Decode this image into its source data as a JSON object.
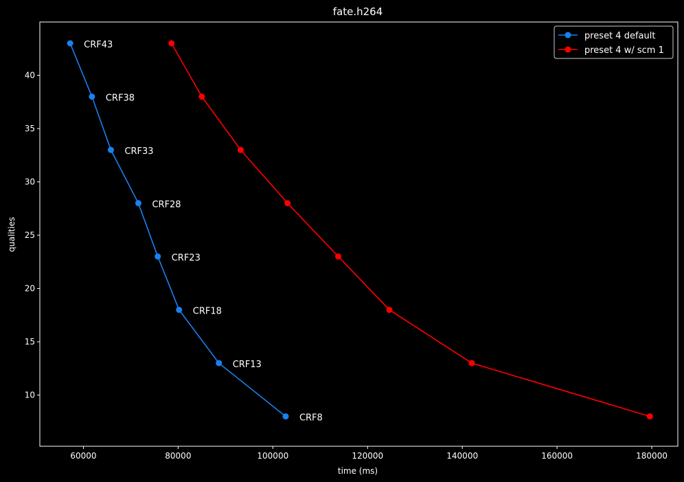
{
  "chart_data": {
    "type": "line",
    "title": "fate.h264",
    "xlabel": "time (ms)",
    "ylabel": "qualities",
    "xlim": [
      50800,
      185500
    ],
    "ylim": [
      5.2,
      45.0
    ],
    "xticks": [
      60000,
      80000,
      100000,
      120000,
      140000,
      160000,
      180000
    ],
    "xtick_labels": [
      "60000",
      "80000",
      "100000",
      "120000",
      "140000",
      "160000",
      "180000"
    ],
    "yticks": [
      10,
      15,
      20,
      25,
      30,
      35,
      40
    ],
    "ytick_labels": [
      "10",
      "15",
      "20",
      "25",
      "30",
      "35",
      "40"
    ],
    "grid": false,
    "legend_position": "top-right",
    "series": [
      {
        "name": "preset 4 default",
        "color": "#1a80f0",
        "x": [
          57200,
          61800,
          65800,
          71600,
          75700,
          80200,
          88600,
          102700
        ],
        "y": [
          43,
          38,
          33,
          28,
          23,
          18,
          13,
          8
        ]
      },
      {
        "name": "preset 4 w/ scm 1",
        "color": "#ff0000",
        "x": [
          78600,
          85000,
          93200,
          103100,
          113800,
          124600,
          142000,
          179600
        ],
        "y": [
          43,
          38,
          33,
          28,
          23,
          18,
          13,
          8
        ]
      }
    ],
    "annotations": [
      {
        "text": "CRF43",
        "x": 57200,
        "y": 43
      },
      {
        "text": "CRF38",
        "x": 61800,
        "y": 38
      },
      {
        "text": "CRF33",
        "x": 65800,
        "y": 33
      },
      {
        "text": "CRF28",
        "x": 71600,
        "y": 28
      },
      {
        "text": "CRF23",
        "x": 75700,
        "y": 23
      },
      {
        "text": "CRF18",
        "x": 80200,
        "y": 18
      },
      {
        "text": "CRF13",
        "x": 88600,
        "y": 13
      },
      {
        "text": "CRF8",
        "x": 102700,
        "y": 8
      }
    ]
  }
}
